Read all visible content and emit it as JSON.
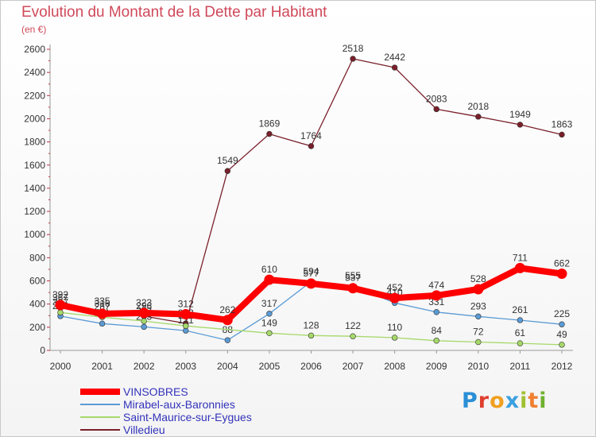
{
  "header": {
    "title": "Evolution du Montant de la Dette par Habitant",
    "subtitle": "(en €)"
  },
  "brand": {
    "letters": [
      "P",
      "r",
      "o",
      "x",
      "i",
      "t",
      "i"
    ],
    "colors": [
      "#2a8fd6",
      "#e0402f",
      "#f0a020",
      "#3aa0e0",
      "#a0c030",
      "#f08030",
      "#70b030"
    ]
  },
  "chart_data": {
    "type": "line",
    "title": "Evolution du Montant de la Dette par Habitant",
    "subtitle": "(en €)",
    "xlabel": "",
    "ylabel": "",
    "x": [
      "2000",
      "2001",
      "2002",
      "2003",
      "2004",
      "2005",
      "2006",
      "2007",
      "2008",
      "2009",
      "2010",
      "2011",
      "2012"
    ],
    "ylim": [
      0,
      2600
    ],
    "yticks": [
      "0",
      "200",
      "400",
      "600",
      "800",
      "1000",
      "1200",
      "1400",
      "1600",
      "1800",
      "2000",
      "2200",
      "2400",
      "2600"
    ],
    "grid": false,
    "legend": "bottom",
    "series": [
      {
        "name": "Villedieu",
        "color": "#7a1f2a",
        "values": [
          367,
          335,
          296,
          233,
          1549,
          1869,
          1764,
          2518,
          2442,
          2083,
          2018,
          1949,
          1863
        ],
        "labels": [
          "367",
          "335",
          "296",
          "233",
          "1549",
          "1869",
          "1764",
          "2518",
          "2442",
          "2083",
          "2018",
          "1949",
          "1863"
        ]
      },
      {
        "name": "Mirabel-aux-Baronnies",
        "color": "#5a9bd5",
        "values": [
          296,
          231,
          203,
          171,
          88,
          317,
          594,
          555,
          410,
          331,
          293,
          261,
          225
        ],
        "labels": [
          "296",
          "231",
          "203",
          "171",
          "88",
          "317",
          "594",
          "555",
          "410",
          "331",
          "293",
          "261",
          "225"
        ]
      },
      {
        "name": "Saint-Maurice-sur-Eygues",
        "color": "#a6d96a",
        "values": [
          327,
          287,
          253,
          211,
          "",
          149,
          128,
          122,
          110,
          84,
          72,
          61,
          49
        ],
        "labels": [
          "327",
          "287",
          "253",
          "211",
          "",
          "149",
          "128",
          "122",
          "110",
          "84",
          "72",
          "61",
          "49"
        ]
      },
      {
        "name": "VINSOBRES",
        "color": "#ff0000",
        "values": [
          392,
          316,
          323,
          312,
          262,
          610,
          577,
          537,
          452,
          474,
          528,
          711,
          662
        ],
        "labels": [
          "392",
          "316",
          "323",
          "312",
          "262",
          "610",
          "577",
          "537",
          "452",
          "474",
          "528",
          "711",
          "662"
        ]
      }
    ]
  },
  "legend": {
    "items": [
      {
        "label": "VINSOBRES",
        "color": "#ff0000",
        "thick": true
      },
      {
        "label": "Mirabel-aux-Baronnies",
        "color": "#5a9bd5",
        "thick": false
      },
      {
        "label": "Saint-Maurice-sur-Eygues",
        "color": "#a6d96a",
        "thick": false
      },
      {
        "label": "Villedieu",
        "color": "#7a1f2a",
        "thick": false
      }
    ]
  }
}
